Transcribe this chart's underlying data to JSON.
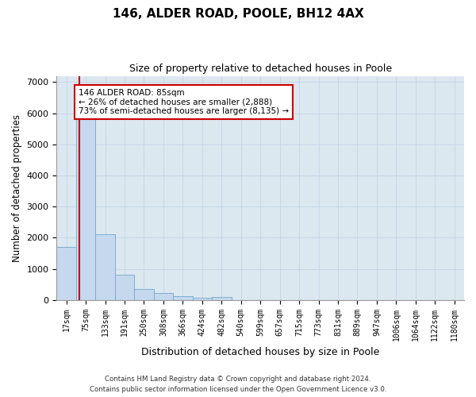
{
  "title1": "146, ALDER ROAD, POOLE, BH12 4AX",
  "title2": "Size of property relative to detached houses in Poole",
  "xlabel": "Distribution of detached houses by size in Poole",
  "ylabel": "Number of detached properties",
  "bin_labels": [
    "17sqm",
    "75sqm",
    "133sqm",
    "191sqm",
    "250sqm",
    "308sqm",
    "366sqm",
    "424sqm",
    "482sqm",
    "540sqm",
    "599sqm",
    "657sqm",
    "715sqm",
    "773sqm",
    "831sqm",
    "889sqm",
    "947sqm",
    "1006sqm",
    "1064sqm",
    "1122sqm",
    "1180sqm"
  ],
  "bar_heights": [
    1700,
    5800,
    2100,
    800,
    350,
    230,
    130,
    60,
    100,
    0,
    0,
    0,
    0,
    0,
    0,
    0,
    0,
    0,
    0,
    0,
    0
  ],
  "bar_color": "#c5d8ed",
  "bar_edge_color": "#7bafd4",
  "annotation_text": "146 ALDER ROAD: 85sqm\n← 26% of detached houses are smaller (2,888)\n73% of semi-detached houses are larger (8,135) →",
  "annotation_box_color": "#ffffff",
  "annotation_box_edge_color": "#cc0000",
  "vline_color": "#cc0000",
  "ylim": [
    0,
    7200
  ],
  "yticks": [
    0,
    1000,
    2000,
    3000,
    4000,
    5000,
    6000,
    7000
  ],
  "grid_color": "#c8d8e8",
  "background_color": "#dce8f0",
  "footer1": "Contains HM Land Registry data © Crown copyright and database right 2024.",
  "footer2": "Contains public sector information licensed under the Open Government Licence v3.0."
}
